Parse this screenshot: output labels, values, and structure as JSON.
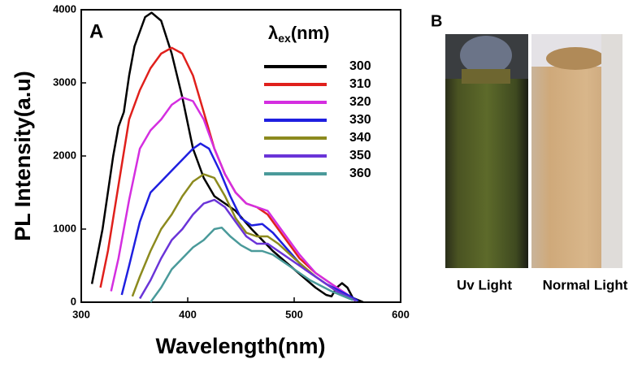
{
  "chart_data": {
    "type": "line",
    "annotation": "A",
    "x_label": "Wavelength(nm)",
    "y_label": "PL Intensity(a.u)",
    "legend_title_parts": [
      "λ",
      "ex",
      "(nm)"
    ],
    "xlim": [
      300,
      600
    ],
    "xticks": [
      300,
      400,
      500,
      600
    ],
    "ylim": [
      0,
      4000
    ],
    "yticks": [
      0,
      1000,
      2000,
      3000,
      4000
    ],
    "series": [
      {
        "name": "300",
        "color": "#000000",
        "x": [
          310,
          320,
          330,
          335,
          340,
          345,
          350,
          360,
          366,
          375,
          385,
          395,
          405,
          415,
          425,
          435,
          445,
          460,
          480,
          500,
          520,
          530,
          535,
          540,
          545,
          550,
          555,
          565
        ],
        "values": [
          250,
          1000,
          2000,
          2400,
          2600,
          3100,
          3500,
          3900,
          3960,
          3850,
          3400,
          2800,
          2100,
          1700,
          1450,
          1350,
          1250,
          1000,
          700,
          450,
          200,
          100,
          80,
          200,
          260,
          200,
          60,
          0
        ]
      },
      {
        "name": "310",
        "color": "#e0201c",
        "x": [
          318,
          325,
          335,
          345,
          355,
          365,
          375,
          385,
          395,
          405,
          415,
          425,
          435,
          445,
          455,
          465,
          475,
          490,
          505,
          520,
          540,
          555
        ],
        "values": [
          200,
          700,
          1600,
          2500,
          2900,
          3200,
          3400,
          3480,
          3400,
          3100,
          2600,
          2100,
          1750,
          1500,
          1350,
          1300,
          1200,
          900,
          600,
          400,
          200,
          50
        ]
      },
      {
        "name": "320",
        "color": "#d42ee0",
        "x": [
          328,
          335,
          345,
          355,
          365,
          375,
          385,
          395,
          405,
          415,
          425,
          435,
          445,
          455,
          465,
          475,
          490,
          505,
          520,
          540,
          558
        ],
        "values": [
          150,
          600,
          1400,
          2100,
          2350,
          2500,
          2700,
          2800,
          2750,
          2500,
          2100,
          1750,
          1500,
          1350,
          1300,
          1250,
          950,
          650,
          400,
          200,
          30
        ]
      },
      {
        "name": "330",
        "color": "#1f1fe0",
        "x": [
          338,
          345,
          355,
          365,
          375,
          385,
          395,
          405,
          412,
          420,
          430,
          440,
          450,
          460,
          470,
          480,
          495,
          510,
          530,
          550,
          560
        ],
        "values": [
          100,
          500,
          1100,
          1500,
          1650,
          1800,
          1950,
          2100,
          2170,
          2100,
          1800,
          1450,
          1150,
          1050,
          1070,
          950,
          700,
          450,
          250,
          100,
          20
        ]
      },
      {
        "name": "340",
        "color": "#8c8a1e",
        "x": [
          348,
          355,
          365,
          375,
          385,
          395,
          405,
          415,
          425,
          435,
          445,
          455,
          465,
          475,
          485,
          500,
          520,
          540,
          558
        ],
        "values": [
          80,
          350,
          700,
          1000,
          1200,
          1450,
          1650,
          1750,
          1700,
          1450,
          1150,
          950,
          900,
          900,
          800,
          600,
          350,
          150,
          20
        ]
      },
      {
        "name": "350",
        "color": "#6a34d8",
        "x": [
          355,
          365,
          375,
          385,
          395,
          405,
          415,
          425,
          435,
          445,
          455,
          465,
          475,
          485,
          500,
          520,
          540,
          558
        ],
        "values": [
          50,
          300,
          600,
          850,
          1000,
          1200,
          1350,
          1400,
          1300,
          1100,
          900,
          800,
          800,
          700,
          550,
          350,
          150,
          20
        ]
      },
      {
        "name": "360",
        "color": "#4a9a9a",
        "x": [
          365,
          375,
          385,
          395,
          405,
          415,
          425,
          432,
          440,
          450,
          460,
          470,
          480,
          495,
          515,
          535,
          555
        ],
        "values": [
          0,
          200,
          450,
          600,
          750,
          850,
          1000,
          1020,
          900,
          780,
          700,
          700,
          650,
          500,
          300,
          150,
          30
        ]
      }
    ]
  },
  "panel_b": {
    "label": "B",
    "captions": [
      "Uv Light",
      "Normal Light"
    ]
  }
}
